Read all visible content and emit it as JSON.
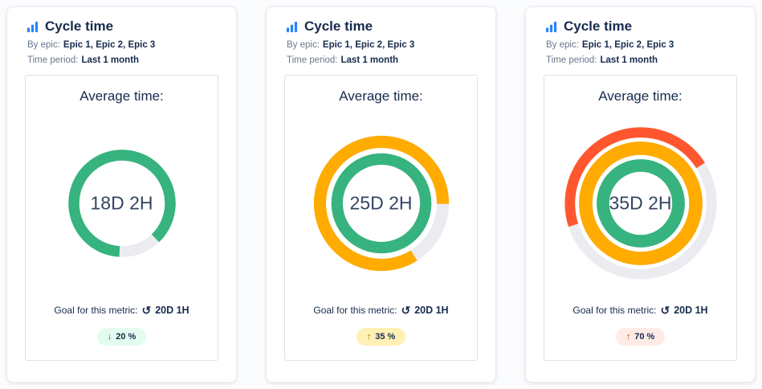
{
  "colors": {
    "track": "#EBECF0",
    "green": "#36B37E",
    "orange": "#FFAB00",
    "red": "#FF5630",
    "icon_blue": "#2684FF"
  },
  "cards": [
    {
      "title": "Cycle time",
      "title_icon": "bar-chart-icon",
      "by_epic_label": "By epic:",
      "by_epic_value": "Epic 1, Epic 2, Epic 3",
      "time_period_label": "Time period:",
      "time_period_value": "Last 1 month",
      "panel_title": "Average time:",
      "center_value": "18D 2H",
      "goal_label": "Goal for this metric:",
      "goal_icon": "↺",
      "goal_value": "20D 1H",
      "badge": {
        "arrow": "↓",
        "text": "20 %",
        "bg": "#E3FCEF",
        "arrow_color": "#00875A"
      },
      "rings": [
        {
          "color": "#36B37E",
          "radius": 80,
          "stroke": 18,
          "fraction": 0.87,
          "start": 183
        }
      ]
    },
    {
      "title": "Cycle time",
      "title_icon": "bar-chart-icon",
      "by_epic_label": "By epic:",
      "by_epic_value": "Epic 1, Epic 2, Epic 3",
      "time_period_label": "Time period:",
      "time_period_value": "Last 1 month",
      "panel_title": "Average time:",
      "center_value": "25D 2H",
      "goal_label": "Goal for this metric:",
      "goal_icon": "↺",
      "goal_value": "20D 1H",
      "badge": {
        "arrow": "↑",
        "text": "35 %",
        "bg": "#FFF0B3",
        "arrow_color": "#B65C02"
      },
      "rings": [
        {
          "color": "#FFAB00",
          "radius": 86,
          "stroke": 17,
          "fraction": 0.84,
          "start": 148
        },
        {
          "color": "#36B37E",
          "radius": 62,
          "stroke": 16,
          "fraction": 1,
          "start": 0
        }
      ]
    },
    {
      "title": "Cycle time",
      "title_icon": "bar-chart-icon",
      "by_epic_label": "By epic:",
      "by_epic_value": "Epic 1, Epic 2, Epic 3",
      "time_period_label": "Time period:",
      "time_period_value": "Last 1 month",
      "panel_title": "Average time:",
      "center_value": "35D 2H",
      "goal_label": "Goal for this metric:",
      "goal_icon": "↺",
      "goal_value": "20D 1H",
      "badge": {
        "arrow": "↑",
        "text": "70 %",
        "bg": "#FFEBE6",
        "arrow_color": "#DE350B"
      },
      "rings": [
        {
          "color": "#FF5630",
          "radius": 90,
          "stroke": 13,
          "fraction": 0.46,
          "start": 252
        },
        {
          "color": "#FFAB00",
          "radius": 70,
          "stroke": 17,
          "fraction": 1,
          "start": 0
        },
        {
          "color": "#36B37E",
          "radius": 48,
          "stroke": 16,
          "fraction": 1,
          "start": 0
        }
      ]
    }
  ],
  "chart_data": [
    {
      "type": "donut-gauge",
      "title": "Cycle time",
      "filters": {
        "by_epic": "Epic 1, Epic 2, Epic 3",
        "time_period": "Last 1 month"
      },
      "average_time": "18D 2H",
      "goal": "20D 1H",
      "change_percent": -20,
      "rings": [
        {
          "color": "#36B37E",
          "fraction": 0.87
        }
      ]
    },
    {
      "type": "donut-gauge",
      "title": "Cycle time",
      "filters": {
        "by_epic": "Epic 1, Epic 2, Epic 3",
        "time_period": "Last 1 month"
      },
      "average_time": "25D 2H",
      "goal": "20D 1H",
      "change_percent": 35,
      "rings": [
        {
          "color": "#FFAB00",
          "fraction": 0.84
        },
        {
          "color": "#36B37E",
          "fraction": 1
        }
      ]
    },
    {
      "type": "donut-gauge",
      "title": "Cycle time",
      "filters": {
        "by_epic": "Epic 1, Epic 2, Epic 3",
        "time_period": "Last 1 month"
      },
      "average_time": "35D 2H",
      "goal": "20D 1H",
      "change_percent": 70,
      "rings": [
        {
          "color": "#FF5630",
          "fraction": 0.46
        },
        {
          "color": "#FFAB00",
          "fraction": 1
        },
        {
          "color": "#36B37E",
          "fraction": 1
        }
      ]
    }
  ]
}
